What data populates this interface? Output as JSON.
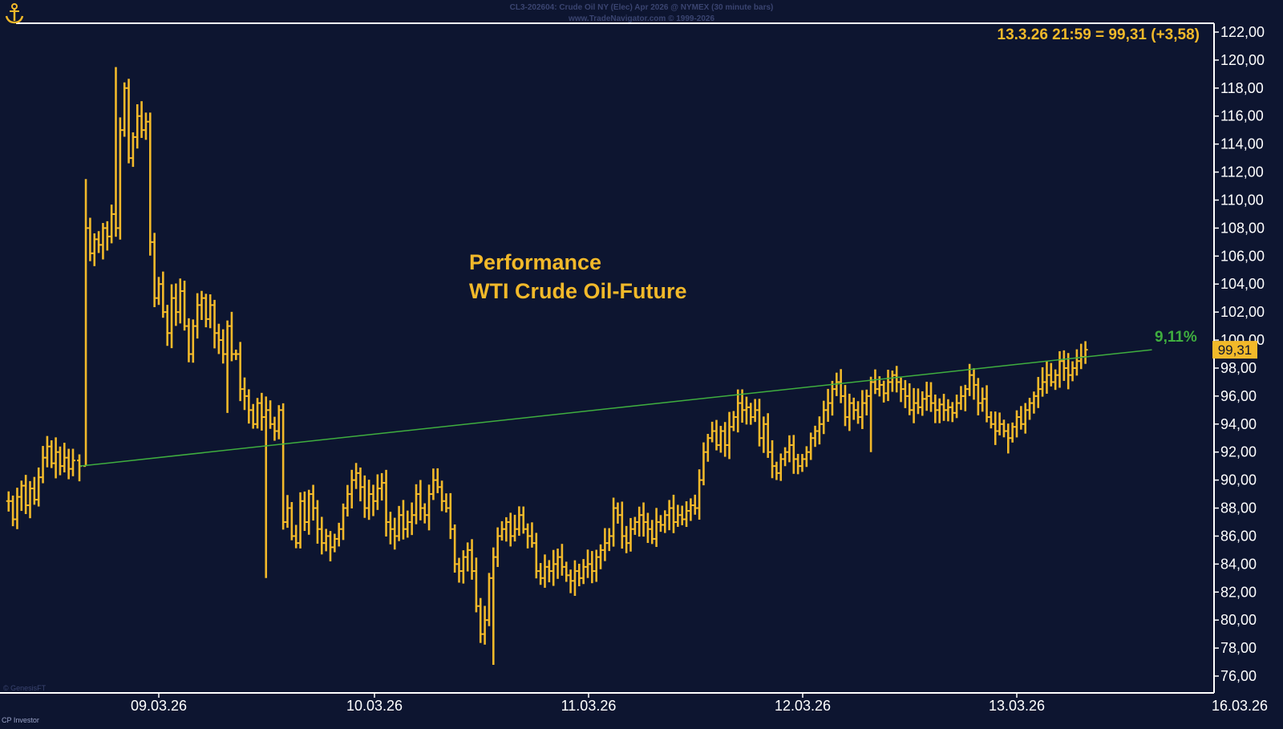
{
  "header": {
    "instrument_line": "CL3-202604: Crude Oil NY (Elec) Apr 2026 @ NYMEX (30 minute bars)",
    "copyright_line": "www.TradeNavigator.com © 1999-2026",
    "logo_icon": "anchor-icon"
  },
  "footer": {
    "source_left": "© GenesisFT",
    "publisher": "CP Investor"
  },
  "annotations": {
    "last_quote": "13.3.26 21:59 = 99,31 (+3,58)",
    "title_line1": "Performance",
    "title_line2": "WTI Crude Oil-Future",
    "trend_pct": "9,11%",
    "price_tag": "99,31"
  },
  "colors": {
    "background": "#0d1530",
    "bars": "#f2b92a",
    "trendline": "#3fae3f",
    "axis": "#ffffff",
    "text": "#ffffff",
    "header_text": "#3a4470"
  },
  "chart_data": {
    "type": "ohlc",
    "title": "Performance WTI Crude Oil-Future",
    "x_tick_labels": [
      "09.03.26",
      "10.03.26",
      "11.03.26",
      "12.03.26",
      "13.03.26",
      "16.03.26"
    ],
    "y_tick_labels": [
      "76,00",
      "78,00",
      "80,00",
      "82,00",
      "84,00",
      "86,00",
      "88,00",
      "90,00",
      "92,00",
      "94,00",
      "96,00",
      "98,00",
      "100,00",
      "102,00",
      "104,00",
      "106,00",
      "108,00",
      "110,00",
      "112,00",
      "114,00",
      "116,00",
      "118,00",
      "120,00",
      "122,00"
    ],
    "ylim": [
      75,
      122.5
    ],
    "x_unit": "trading day index (0 = 06.03.26 evening session start)",
    "grid": false,
    "trendline": {
      "from": [
        0.333,
        91.0
      ],
      "to": [
        5.33,
        99.31
      ],
      "label": "9,11%"
    },
    "last_price": 99.31,
    "bars_path": [
      [
        0.0,
        88.5
      ],
      [
        0.02,
        87.2
      ],
      [
        0.04,
        88.8
      ],
      [
        0.06,
        89.6
      ],
      [
        0.08,
        88.2
      ],
      [
        0.1,
        89.4
      ],
      [
        0.12,
        88.6
      ],
      [
        0.14,
        90.2
      ],
      [
        0.16,
        91.6
      ],
      [
        0.18,
        92.4
      ],
      [
        0.2,
        91.2
      ],
      [
        0.22,
        92.0
      ],
      [
        0.24,
        91.0
      ],
      [
        0.26,
        91.6
      ],
      [
        0.28,
        90.8
      ],
      [
        0.3,
        91.4
      ],
      [
        0.33,
        91.0
      ],
      [
        0.36,
        108.0
      ],
      [
        0.38,
        106.2
      ],
      [
        0.4,
        107.2
      ],
      [
        0.42,
        106.8
      ],
      [
        0.44,
        108.0
      ],
      [
        0.46,
        107.4
      ],
      [
        0.48,
        109.0
      ],
      [
        0.5,
        108.0
      ],
      [
        0.52,
        115.0
      ],
      [
        0.54,
        118.0
      ],
      [
        0.56,
        113.0
      ],
      [
        0.58,
        114.5
      ],
      [
        0.6,
        116.0
      ],
      [
        0.62,
        115.0
      ],
      [
        0.64,
        115.6
      ],
      [
        0.66,
        107.0
      ],
      [
        0.68,
        103.0
      ],
      [
        0.7,
        104.0
      ],
      [
        0.72,
        102.0
      ],
      [
        0.74,
        100.5
      ],
      [
        0.76,
        103.0
      ],
      [
        0.78,
        102.0
      ],
      [
        0.8,
        103.5
      ],
      [
        0.82,
        101.0
      ],
      [
        0.84,
        99.0
      ],
      [
        0.86,
        101.0
      ],
      [
        0.88,
        102.5
      ],
      [
        0.9,
        103.0
      ],
      [
        0.92,
        101.5
      ],
      [
        0.94,
        102.5
      ],
      [
        0.96,
        100.5
      ],
      [
        0.98,
        100.0
      ],
      [
        1.0,
        99.0
      ],
      [
        1.02,
        101.0
      ],
      [
        1.04,
        99.0
      ],
      [
        1.06,
        99.0
      ],
      [
        1.08,
        96.5
      ],
      [
        1.1,
        96.0
      ],
      [
        1.12,
        95.0
      ],
      [
        1.14,
        94.0
      ],
      [
        1.16,
        95.5
      ],
      [
        1.18,
        94.5
      ],
      [
        1.2,
        95.0
      ],
      [
        1.22,
        94.0
      ],
      [
        1.24,
        93.5
      ],
      [
        1.26,
        95.0
      ],
      [
        1.28,
        87.0
      ],
      [
        1.3,
        88.0
      ],
      [
        1.32,
        86.0
      ],
      [
        1.34,
        85.5
      ],
      [
        1.36,
        88.5
      ],
      [
        1.38,
        87.0
      ],
      [
        1.4,
        89.0
      ],
      [
        1.42,
        88.0
      ],
      [
        1.44,
        86.5
      ],
      [
        1.46,
        85.5
      ],
      [
        1.48,
        86.0
      ],
      [
        1.5,
        85.2
      ],
      [
        1.52,
        85.8
      ],
      [
        1.54,
        86.5
      ],
      [
        1.56,
        88.0
      ],
      [
        1.58,
        89.0
      ],
      [
        1.6,
        90.0
      ],
      [
        1.62,
        90.5
      ],
      [
        1.64,
        89.5
      ],
      [
        1.66,
        88.0
      ],
      [
        1.68,
        89.0
      ],
      [
        1.7,
        88.5
      ],
      [
        1.72,
        89.4
      ],
      [
        1.74,
        89.8
      ],
      [
        1.76,
        87.0
      ],
      [
        1.78,
        86.5
      ],
      [
        1.8,
        86.0
      ],
      [
        1.82,
        87.5
      ],
      [
        1.84,
        86.5
      ],
      [
        1.86,
        87.0
      ],
      [
        1.88,
        87.5
      ],
      [
        1.9,
        89.0
      ],
      [
        1.92,
        88.0
      ],
      [
        1.94,
        87.5
      ],
      [
        1.96,
        89.0
      ],
      [
        1.98,
        90.0
      ],
      [
        2.0,
        89.5
      ],
      [
        2.02,
        88.5
      ],
      [
        2.04,
        88.0
      ],
      [
        2.06,
        86.5
      ],
      [
        2.08,
        84.0
      ],
      [
        2.1,
        83.5
      ],
      [
        2.12,
        84.5
      ],
      [
        2.14,
        85.0
      ],
      [
        2.16,
        83.5
      ],
      [
        2.18,
        81.0
      ],
      [
        2.2,
        79.0
      ],
      [
        2.22,
        80.0
      ],
      [
        2.24,
        83.0
      ],
      [
        2.26,
        84.5
      ],
      [
        2.28,
        86.0
      ],
      [
        2.3,
        86.5
      ],
      [
        2.32,
        87.0
      ],
      [
        2.34,
        86.0
      ],
      [
        2.36,
        86.5
      ],
      [
        2.38,
        87.5
      ],
      [
        2.4,
        86.5
      ],
      [
        2.42,
        86.0
      ],
      [
        2.44,
        85.5
      ],
      [
        2.46,
        83.5
      ],
      [
        2.48,
        83.0
      ],
      [
        2.5,
        83.8
      ],
      [
        2.52,
        83.5
      ],
      [
        2.54,
        84.0
      ],
      [
        2.56,
        84.5
      ],
      [
        2.58,
        83.8
      ],
      [
        2.6,
        83.2
      ],
      [
        2.62,
        82.8
      ],
      [
        2.64,
        83.5
      ],
      [
        2.66,
        83.0
      ],
      [
        2.68,
        83.8
      ],
      [
        2.7,
        84.0
      ],
      [
        2.72,
        83.5
      ],
      [
        2.74,
        84.5
      ],
      [
        2.76,
        85.0
      ],
      [
        2.78,
        85.5
      ],
      [
        2.8,
        86.0
      ],
      [
        2.82,
        88.0
      ],
      [
        2.84,
        87.5
      ],
      [
        2.86,
        86.0
      ],
      [
        2.88,
        85.5
      ],
      [
        2.9,
        86.5
      ],
      [
        2.92,
        87.0
      ],
      [
        2.94,
        87.5
      ],
      [
        2.96,
        87.0
      ],
      [
        2.98,
        86.5
      ],
      [
        3.0,
        85.8
      ],
      [
        3.02,
        87.0
      ],
      [
        3.04,
        86.8
      ],
      [
        3.06,
        87.5
      ],
      [
        3.08,
        88.0
      ],
      [
        3.1,
        87.0
      ],
      [
        3.12,
        87.5
      ],
      [
        3.14,
        87.2
      ],
      [
        3.16,
        87.8
      ],
      [
        3.18,
        88.2
      ],
      [
        3.2,
        88.0
      ],
      [
        3.22,
        90.0
      ],
      [
        3.24,
        92.0
      ],
      [
        3.26,
        93.0
      ],
      [
        3.28,
        93.5
      ],
      [
        3.3,
        92.5
      ],
      [
        3.32,
        93.5
      ],
      [
        3.34,
        92.5
      ],
      [
        3.36,
        93.8
      ],
      [
        3.38,
        94.5
      ],
      [
        3.4,
        95.5
      ],
      [
        3.42,
        95.0
      ],
      [
        3.44,
        95.2
      ],
      [
        3.46,
        94.5
      ],
      [
        3.48,
        95.0
      ],
      [
        3.5,
        93.0
      ],
      [
        3.52,
        94.0
      ],
      [
        3.54,
        92.0
      ],
      [
        3.56,
        91.0
      ],
      [
        3.58,
        90.5
      ],
      [
        3.6,
        91.5
      ],
      [
        3.62,
        92.0
      ],
      [
        3.64,
        92.5
      ],
      [
        3.66,
        91.5
      ],
      [
        3.68,
        91.0
      ],
      [
        3.7,
        91.5
      ],
      [
        3.72,
        92.0
      ],
      [
        3.74,
        93.0
      ],
      [
        3.76,
        93.5
      ],
      [
        3.78,
        94.0
      ],
      [
        3.8,
        95.0
      ],
      [
        3.82,
        95.5
      ],
      [
        3.84,
        96.5
      ],
      [
        3.86,
        97.0
      ],
      [
        3.88,
        96.0
      ],
      [
        3.9,
        94.5
      ],
      [
        3.92,
        95.5
      ],
      [
        3.94,
        95.0
      ],
      [
        3.96,
        94.5
      ],
      [
        3.98,
        95.5
      ],
      [
        4.0,
        96.0
      ],
      [
        4.02,
        97.0
      ],
      [
        4.04,
        96.5
      ],
      [
        4.06,
        96.8
      ],
      [
        4.08,
        96.2
      ],
      [
        4.1,
        97.0
      ],
      [
        4.12,
        97.5
      ],
      [
        4.14,
        97.0
      ],
      [
        4.16,
        96.5
      ],
      [
        4.18,
        96.0
      ],
      [
        4.2,
        95.0
      ],
      [
        4.22,
        95.5
      ],
      [
        4.24,
        95.2
      ],
      [
        4.26,
        95.8
      ],
      [
        4.28,
        96.0
      ],
      [
        4.3,
        95.5
      ],
      [
        4.32,
        95.0
      ],
      [
        4.34,
        95.4
      ],
      [
        4.36,
        95.0
      ],
      [
        4.38,
        95.2
      ],
      [
        4.4,
        94.8
      ],
      [
        4.42,
        95.5
      ],
      [
        4.44,
        96.0
      ],
      [
        4.46,
        96.5
      ],
      [
        4.48,
        97.5
      ],
      [
        4.5,
        96.8
      ],
      [
        4.52,
        95.5
      ],
      [
        4.54,
        95.8
      ],
      [
        4.56,
        94.5
      ],
      [
        4.58,
        94.0
      ],
      [
        4.6,
        93.5
      ],
      [
        4.62,
        94.0
      ],
      [
        4.64,
        93.5
      ],
      [
        4.66,
        93.0
      ],
      [
        4.68,
        93.8
      ],
      [
        4.7,
        94.5
      ],
      [
        4.72,
        94.0
      ],
      [
        4.74,
        95.0
      ],
      [
        4.76,
        95.5
      ],
      [
        4.78,
        96.0
      ],
      [
        4.8,
        96.5
      ],
      [
        4.82,
        97.0
      ],
      [
        4.84,
        97.5
      ],
      [
        4.86,
        97.0
      ],
      [
        4.88,
        97.5
      ],
      [
        4.9,
        98.5
      ],
      [
        4.92,
        98.0
      ],
      [
        4.94,
        97.5
      ],
      [
        4.96,
        98.0
      ],
      [
        4.98,
        98.5
      ],
      [
        5.0,
        98.8
      ],
      [
        5.02,
        99.31
      ]
    ]
  }
}
